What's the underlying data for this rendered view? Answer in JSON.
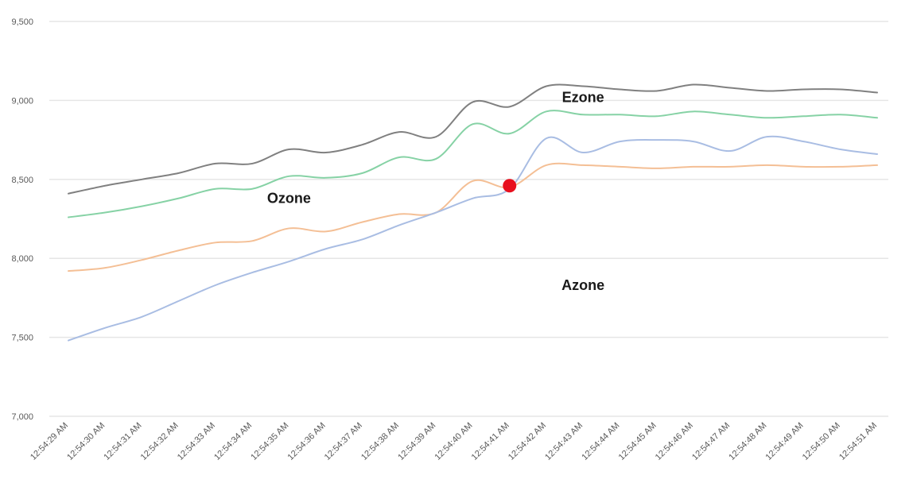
{
  "chart_data": {
    "type": "line",
    "title": "",
    "xlabel": "",
    "ylabel": "",
    "ylim": [
      7000,
      9500
    ],
    "y_ticks": [
      "7,000",
      "7,500",
      "8,000",
      "8,500",
      "9,000",
      "9,500"
    ],
    "y_tick_values": [
      7000,
      7500,
      8000,
      8500,
      9000,
      9500
    ],
    "grid": true,
    "categories": [
      "12:54:29 AM",
      "12:54:30 AM",
      "12:54:31 AM",
      "12:54:32 AM",
      "12:54:33 AM",
      "12:54:34 AM",
      "12:54:35 AM",
      "12:54:36 AM",
      "12:54:37 AM",
      "12:54:38 AM",
      "12:54:39 AM",
      "12:54:40 AM",
      "12:54:41 AM",
      "12:54:42 AM",
      "12:54:43 AM",
      "12:54:44 AM",
      "12:54:45 AM",
      "12:54:46 AM",
      "12:54:47 AM",
      "12:54:48 AM",
      "12:54:49 AM",
      "12:54:50 AM",
      "12:54:51 AM"
    ],
    "series": [
      {
        "color": "#808080",
        "values": [
          8410,
          8460,
          8500,
          8540,
          8600,
          8600,
          8690,
          8670,
          8720,
          8800,
          8770,
          8990,
          8960,
          9090,
          9090,
          9070,
          9060,
          9100,
          9080,
          9060,
          9070,
          9070,
          9050
        ]
      },
      {
        "color": "#86d2a5",
        "values": [
          8260,
          8290,
          8330,
          8380,
          8440,
          8440,
          8520,
          8510,
          8540,
          8640,
          8630,
          8850,
          8790,
          8930,
          8910,
          8910,
          8900,
          8930,
          8910,
          8890,
          8900,
          8910,
          8890
        ]
      },
      {
        "color": "#f4bf95",
        "values": [
          7920,
          7940,
          7990,
          8050,
          8100,
          8110,
          8190,
          8170,
          8230,
          8280,
          8290,
          8490,
          8450,
          8590,
          8590,
          8580,
          8570,
          8580,
          8580,
          8590,
          8580,
          8580,
          8590
        ]
      },
      {
        "color": "#a9bde3",
        "values": [
          7480,
          7560,
          7630,
          7730,
          7830,
          7910,
          7980,
          8060,
          8120,
          8210,
          8290,
          8380,
          8440,
          8760,
          8670,
          8740,
          8750,
          8740,
          8680,
          8770,
          8740,
          8690,
          8660
        ]
      }
    ],
    "annotations": [
      {
        "text": "Ezone",
        "x": "12:54:43 AM",
        "y": 8990
      },
      {
        "text": "Ozone",
        "x": "12:54:35 AM",
        "y": 8350
      },
      {
        "text": "Azone",
        "x": "12:54:43 AM",
        "y": 7800
      }
    ],
    "marker": {
      "x": "12:54:41 AM",
      "y": 8460,
      "color": "#e8101e"
    }
  }
}
